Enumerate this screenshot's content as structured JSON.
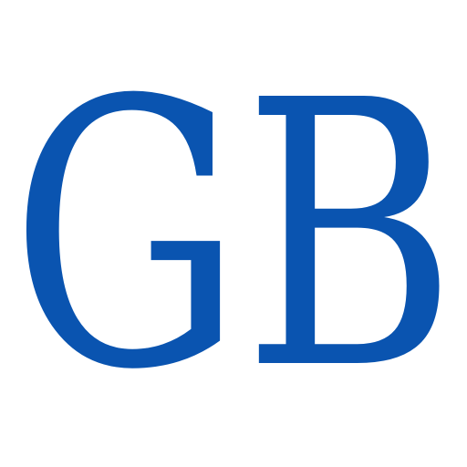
{
  "logo": {
    "text": "GB",
    "color": "#0a54b0",
    "background": "#ffffff"
  }
}
